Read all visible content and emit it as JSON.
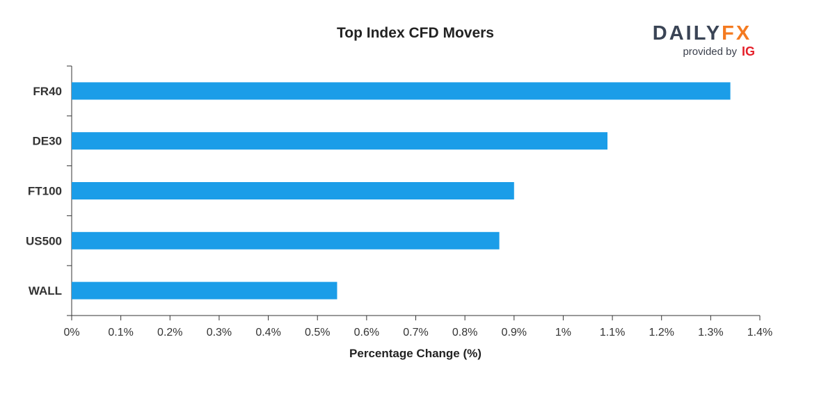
{
  "chart_data": {
    "type": "bar",
    "orientation": "horizontal",
    "title": "Top Index CFD Movers",
    "categories": [
      "FR40",
      "DE30",
      "FT100",
      "US500",
      "WALL"
    ],
    "values": [
      1.34,
      1.09,
      0.9,
      0.87,
      0.54
    ],
    "xlabel": "Percentage Change (%)",
    "ylabel": "",
    "xlim": [
      0,
      1.4
    ],
    "xticks": [
      "0%",
      "0.1%",
      "0.2%",
      "0.3%",
      "0.4%",
      "0.5%",
      "0.6%",
      "0.7%",
      "0.8%",
      "0.9%",
      "1%",
      "1.1%",
      "1.2%",
      "1.3%",
      "1.4%"
    ],
    "grid": false,
    "bar_color": "#1b9de8"
  },
  "branding": {
    "daily_text": "DAILY",
    "fx_text": "FX",
    "provided_by": "provided by",
    "ig_text": "IG",
    "daily_color": "#3a4455",
    "fx_color": "#f47a20",
    "ig_color": "#e5202a"
  }
}
